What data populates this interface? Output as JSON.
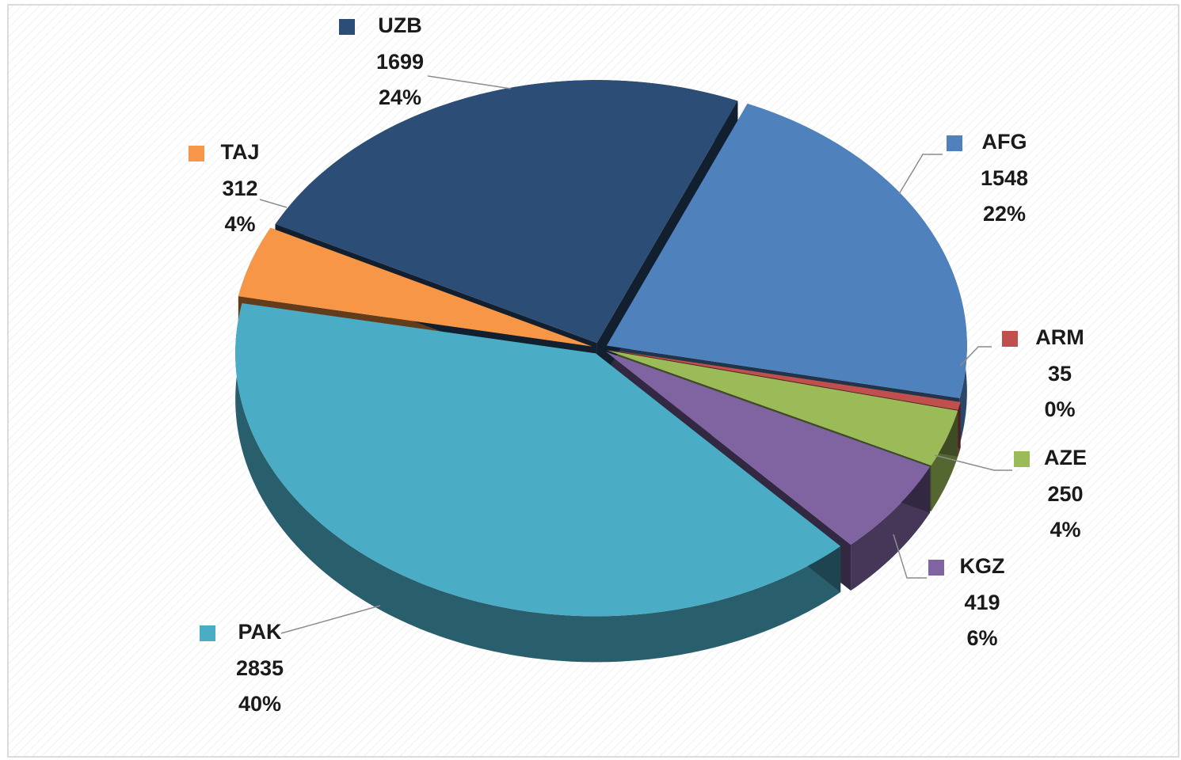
{
  "chart_data": {
    "type": "pie",
    "categories": [
      "AFG",
      "ARM",
      "AZE",
      "KGZ",
      "PAK",
      "TAJ",
      "UZB"
    ],
    "values": [
      1548,
      35,
      250,
      419,
      2835,
      312,
      1699
    ],
    "percent_labels": [
      "22%",
      "0%",
      "4%",
      "6%",
      "40%",
      "4%",
      "24%"
    ],
    "colors": [
      "#4f81bd",
      "#c0504d",
      "#9bbb59",
      "#8064a2",
      "#4bacc6",
      "#f79646",
      "#2c4d75"
    ],
    "style": "3d",
    "legend": "labels"
  }
}
